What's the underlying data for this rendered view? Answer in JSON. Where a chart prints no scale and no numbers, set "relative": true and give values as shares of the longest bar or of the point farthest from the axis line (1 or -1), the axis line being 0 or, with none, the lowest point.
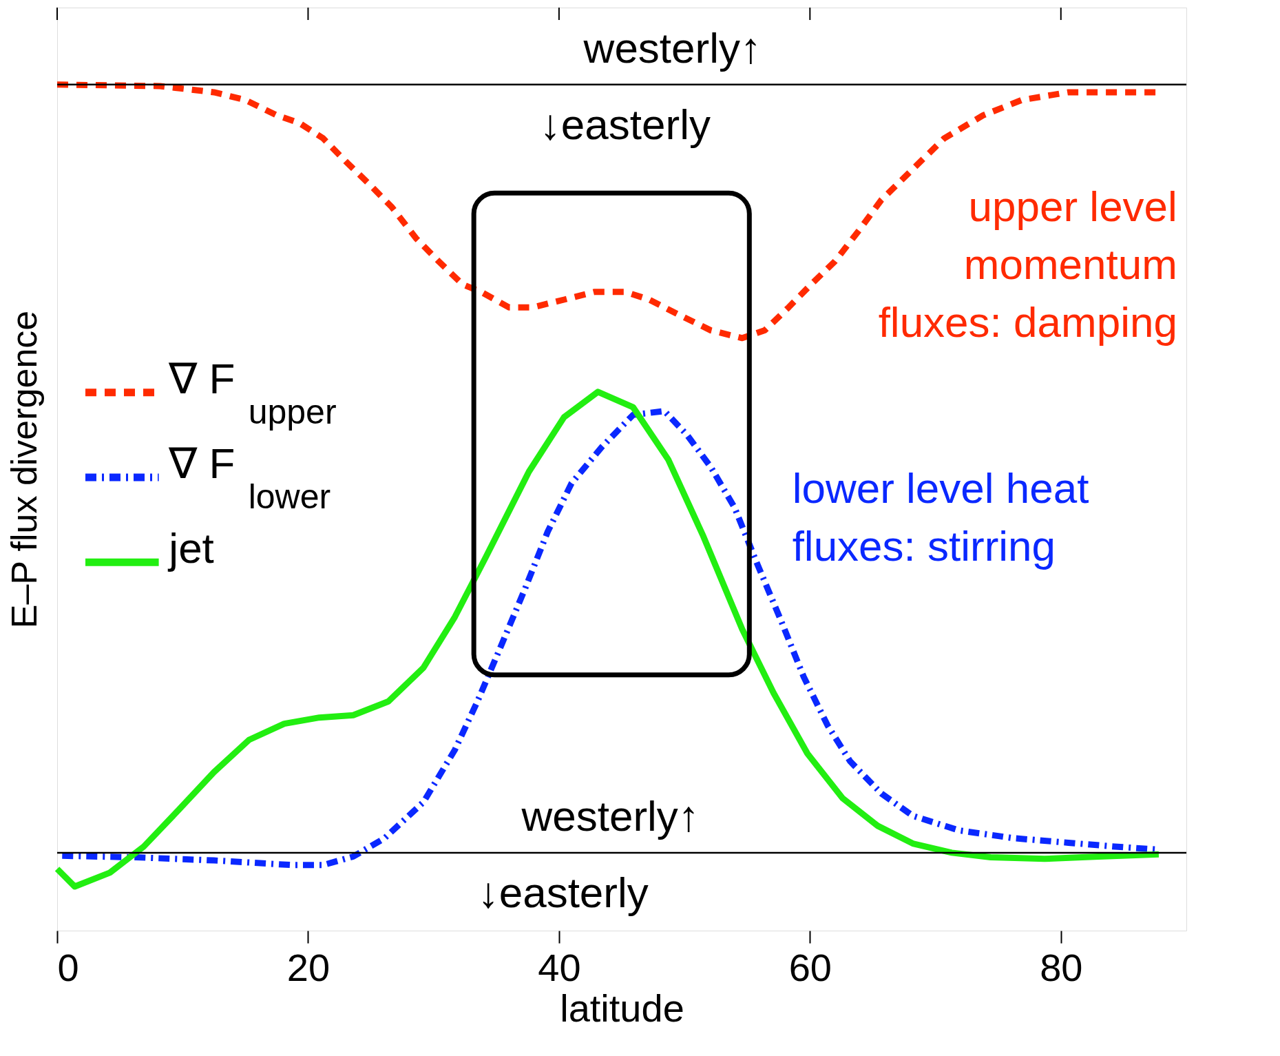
{
  "chart_data": {
    "type": "line",
    "relative": true,
    "xlabel": "latitude",
    "ylabel": "E–P flux divergence",
    "xlim": [
      0,
      90
    ],
    "xticks": [
      0,
      20,
      40,
      60,
      80
    ],
    "grid": false,
    "legend": "left",
    "marker": "none",
    "series": [
      {
        "name": "∇ F$_{upper}$",
        "color": "#ff2a00",
        "line_style": "dashed",
        "x": [
          0,
          8.2,
          12.5,
          15.0,
          17.5,
          19.3,
          21.2,
          23.0,
          24.9,
          26.7,
          28.6,
          30.4,
          32.3,
          33.8,
          36.0,
          37.9,
          40.4,
          42.8,
          45.3,
          47.2,
          49.6,
          52.1,
          54.6,
          56.4,
          58.3,
          60.1,
          62.0,
          63.9,
          65.7,
          68.2,
          70.7,
          73.8,
          76.9,
          80.6,
          84.3,
          87.8
        ],
        "values": [
          1.0,
          0.998,
          0.99,
          0.98,
          0.96,
          0.95,
          0.93,
          0.9,
          0.87,
          0.84,
          0.8,
          0.77,
          0.74,
          0.73,
          0.71,
          0.71,
          0.72,
          0.73,
          0.73,
          0.72,
          0.7,
          0.68,
          0.67,
          0.68,
          0.71,
          0.74,
          0.77,
          0.81,
          0.85,
          0.89,
          0.93,
          0.96,
          0.98,
          0.99,
          0.99,
          0.99
        ]
      },
      {
        "name": "∇ F$_{lower}$",
        "color": "#0a28ff",
        "line_style": "dashdot",
        "x": [
          0.4,
          6.3,
          12.5,
          18.7,
          21.2,
          23.6,
          26.1,
          29.2,
          31.7,
          33.5,
          35.4,
          37.3,
          39.1,
          41.0,
          43.4,
          45.9,
          48.4,
          50.2,
          52.1,
          54.0,
          55.8,
          57.7,
          59.5,
          61.4,
          63.2,
          65.7,
          68.2,
          71.9,
          76.2,
          80.6,
          84.3,
          87.8
        ],
        "values": [
          -0.004,
          -0.006,
          -0.01,
          -0.016,
          -0.016,
          -0.005,
          0.019,
          0.066,
          0.134,
          0.197,
          0.27,
          0.344,
          0.418,
          0.481,
          0.528,
          0.57,
          0.575,
          0.544,
          0.502,
          0.449,
          0.376,
          0.302,
          0.229,
          0.166,
          0.119,
          0.077,
          0.048,
          0.029,
          0.019,
          0.013,
          0.008,
          0.004
        ]
      },
      {
        "name": "jet",
        "color": "#22ee11",
        "line_style": "solid",
        "x": [
          0,
          1.4,
          4.2,
          6.9,
          9.7,
          12.5,
          15.3,
          18.1,
          20.9,
          23.6,
          26.4,
          29.2,
          31.7,
          34.2,
          37.6,
          40.4,
          43.1,
          45.9,
          48.7,
          51.5,
          54.6,
          57.1,
          59.8,
          62.6,
          65.4,
          68.2,
          71.3,
          74.4,
          78.7,
          83.0,
          87.8
        ],
        "values": [
          -0.021,
          -0.044,
          -0.026,
          0.008,
          0.056,
          0.105,
          0.147,
          0.168,
          0.176,
          0.179,
          0.197,
          0.241,
          0.307,
          0.386,
          0.496,
          0.567,
          0.6,
          0.58,
          0.512,
          0.412,
          0.291,
          0.208,
          0.129,
          0.071,
          0.035,
          0.012,
          0,
          -0.006,
          -0.008,
          -0.005,
          -0.002
        ]
      }
    ],
    "ref_lines": [
      {
        "axis": "y",
        "value": 0,
        "color": "#000000"
      },
      {
        "axis": "y",
        "value": 1.0,
        "color": "#000000"
      }
    ],
    "annotations": [
      "westerly↑",
      "↓easterly",
      "westerly↑",
      "↓easterly",
      "upper level\nmomentum\nfluxes: damping",
      "lower level heat\nfluxes: stirring"
    ]
  }
}
